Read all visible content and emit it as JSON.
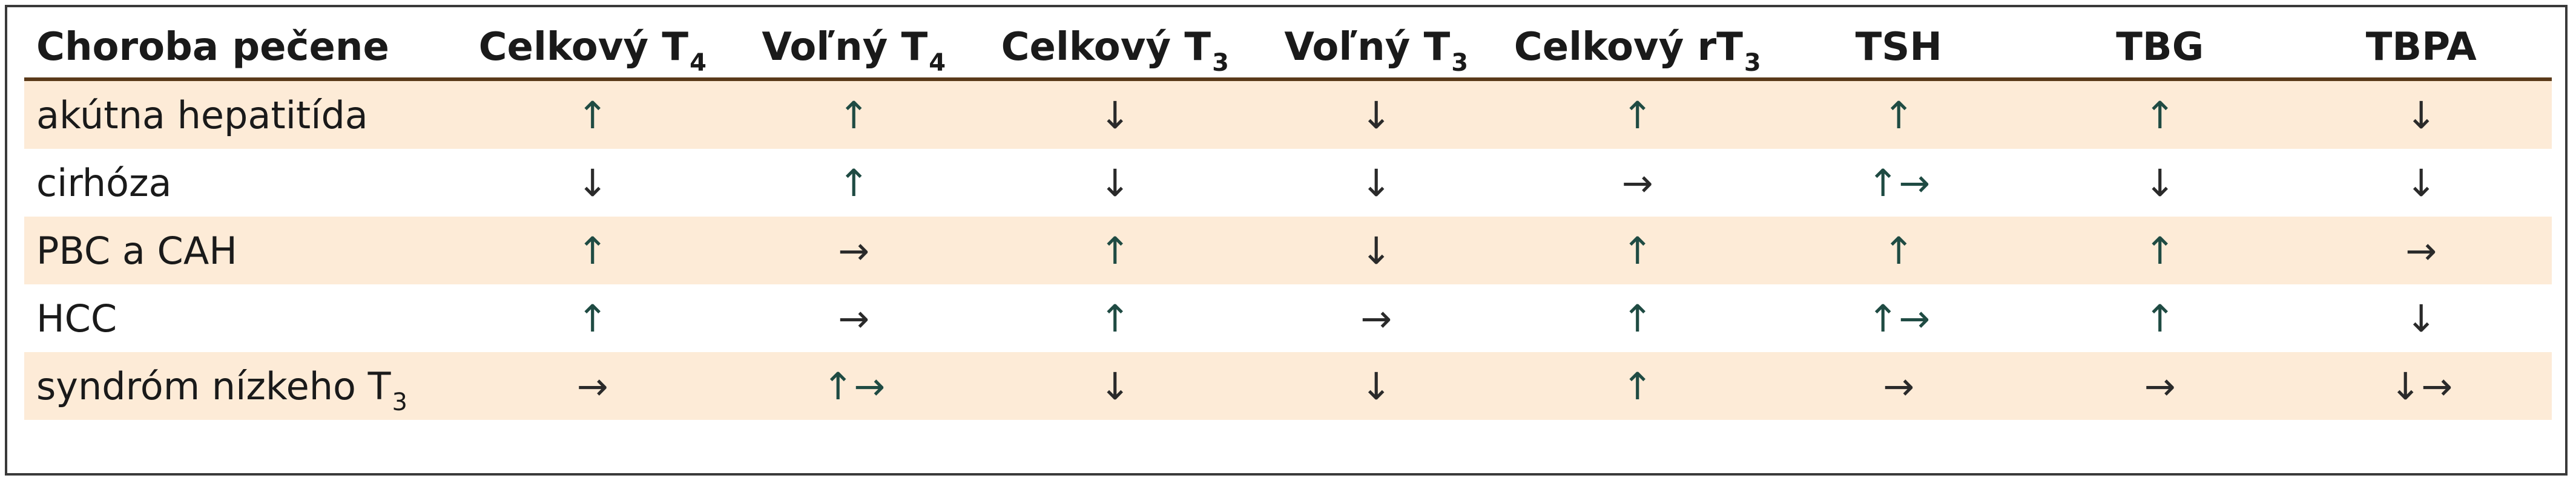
{
  "table": {
    "headers": [
      {
        "text": "Choroba pečene",
        "sub": ""
      },
      {
        "text": "Celkový T",
        "sub": "4"
      },
      {
        "text": "Voľný T",
        "sub": "4"
      },
      {
        "text": "Celkový T",
        "sub": "3"
      },
      {
        "text": "Voľný T",
        "sub": "3"
      },
      {
        "text": "Celkový rT",
        "sub": "3"
      },
      {
        "text": "TSH",
        "sub": ""
      },
      {
        "text": "TBG",
        "sub": ""
      },
      {
        "text": "TBPA",
        "sub": ""
      }
    ],
    "rows": [
      {
        "name": "akútna hepatitída",
        "name_sub": "",
        "cells": [
          "↑",
          "↑",
          "↓",
          "↓",
          "↑",
          "↑",
          "↑",
          "↓"
        ]
      },
      {
        "name": "cirhóza",
        "name_sub": "",
        "cells": [
          "↓",
          "↑",
          "↓",
          "↓",
          "→",
          "↑→",
          "↓",
          "↓"
        ]
      },
      {
        "name": "PBC a CAH",
        "name_sub": "",
        "cells": [
          "↑",
          "→",
          "↑",
          "↓",
          "↑",
          "↑",
          "↑",
          "→"
        ]
      },
      {
        "name": "HCC",
        "name_sub": "",
        "cells": [
          "↑",
          "→",
          "↑",
          "→",
          "↑",
          "↑→",
          "↑",
          "↓"
        ]
      },
      {
        "name": "syndróm nízkeho T",
        "name_sub": "3",
        "cells": [
          "→",
          "↑→",
          "↓",
          "↓",
          "↑",
          "→",
          "→",
          "↓→"
        ]
      }
    ]
  },
  "colors": {
    "row_shade": "#fdebd7",
    "header_rule": "#5a3a1a",
    "arrow_up": "#1f4b43",
    "frame": "#3a3a3a"
  }
}
